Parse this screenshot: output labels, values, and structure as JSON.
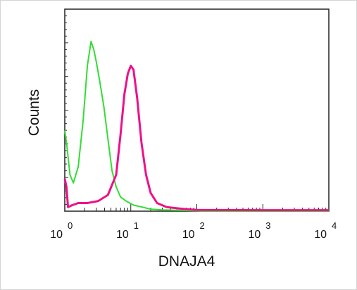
{
  "chart_data": {
    "type": "line",
    "title": "",
    "xlabel": "DNAJA4",
    "ylabel": "Counts",
    "x_scale": "log",
    "xlim": [
      1,
      10000
    ],
    "ylim": [
      0,
      100
    ],
    "x_ticks": [
      {
        "base": "10",
        "exp": "0"
      },
      {
        "base": "10",
        "exp": "1"
      },
      {
        "base": "10",
        "exp": "2"
      },
      {
        "base": "10",
        "exp": "3"
      },
      {
        "base": "10",
        "exp": "4"
      }
    ],
    "grid": false,
    "legend": null,
    "series": [
      {
        "color": "#33dd33",
        "stroke_width": 2,
        "points": [
          [
            1.0,
            40
          ],
          [
            1.08,
            32
          ],
          [
            1.2,
            18
          ],
          [
            1.35,
            14
          ],
          [
            1.6,
            22
          ],
          [
            1.9,
            45
          ],
          [
            2.2,
            72
          ],
          [
            2.5,
            84
          ],
          [
            2.75,
            80
          ],
          [
            3.0,
            74
          ],
          [
            3.4,
            64
          ],
          [
            3.9,
            52
          ],
          [
            4.5,
            36
          ],
          [
            5.2,
            20
          ],
          [
            6.0,
            12
          ],
          [
            7.0,
            7
          ],
          [
            8.5,
            5
          ],
          [
            11,
            3
          ],
          [
            15,
            2
          ],
          [
            20,
            1
          ],
          [
            30,
            0.6
          ],
          [
            60,
            0.4
          ],
          [
            200,
            0
          ],
          [
            10000,
            0
          ]
        ]
      },
      {
        "color": "#ee1188",
        "stroke_width": 3,
        "points": [
          [
            1.0,
            16
          ],
          [
            1.06,
            12
          ],
          [
            1.12,
            2
          ],
          [
            1.3,
            3
          ],
          [
            1.6,
            4
          ],
          [
            2.2,
            4
          ],
          [
            3.2,
            5
          ],
          [
            4.5,
            8
          ],
          [
            6.0,
            18
          ],
          [
            7.0,
            38
          ],
          [
            8.0,
            58
          ],
          [
            9.0,
            68
          ],
          [
            10.0,
            72
          ],
          [
            11.0,
            70
          ],
          [
            12.5,
            56
          ],
          [
            14.5,
            34
          ],
          [
            17,
            18
          ],
          [
            20,
            9
          ],
          [
            25,
            4
          ],
          [
            35,
            2
          ],
          [
            60,
            1.2
          ],
          [
            100,
            0.6
          ],
          [
            1000,
            0.5
          ],
          [
            10000,
            0.5
          ]
        ]
      }
    ]
  }
}
